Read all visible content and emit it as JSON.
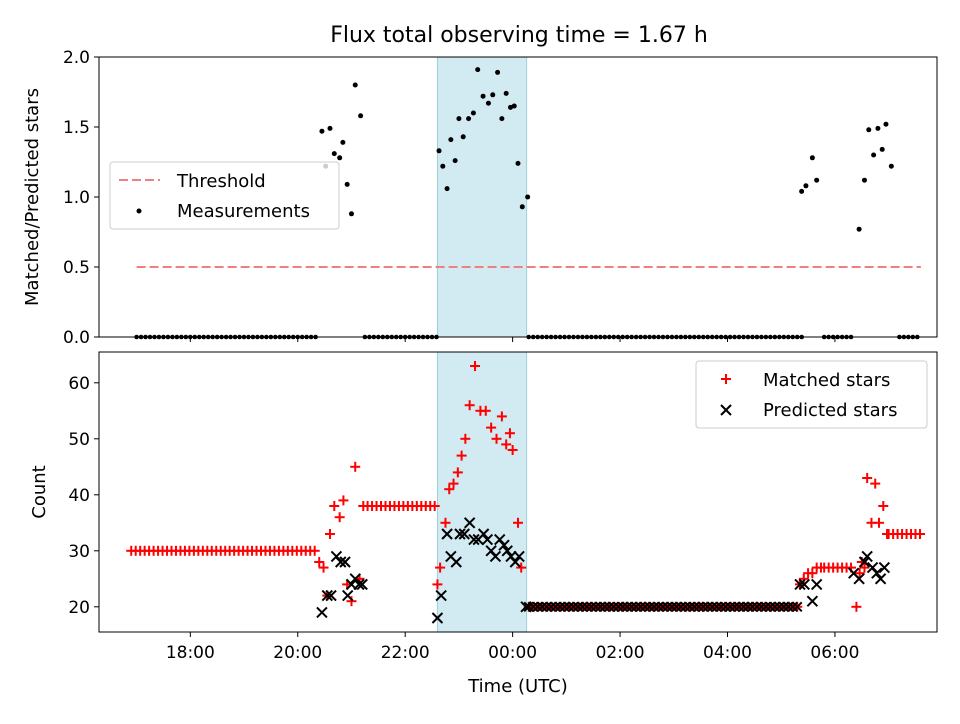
{
  "title": "Flux total observing time = 1.67 h",
  "xlabel": "Time (UTC)",
  "x_ticks": [
    {
      "t": 18,
      "label": "18:00"
    },
    {
      "t": 20,
      "label": "20:00"
    },
    {
      "t": 22,
      "label": "22:00"
    },
    {
      "t": 24,
      "label": "00:00"
    },
    {
      "t": 26,
      "label": "02:00"
    },
    {
      "t": 28,
      "label": "04:00"
    },
    {
      "t": 30,
      "label": "06:00"
    }
  ],
  "x_range_hours": [
    16.3,
    31.9
  ],
  "highlight_window_hours": [
    22.6,
    24.26
  ],
  "colors": {
    "threshold": "#f08080",
    "matched": "#ff0000",
    "predicted": "#000000",
    "highlight": "#add8e6"
  },
  "chart_data": [
    {
      "type": "scatter",
      "ylabel": "Matched/Predicted stars",
      "ylim": [
        0,
        2
      ],
      "yticks": [
        "0.0",
        "0.5",
        "1.0",
        "1.5",
        "2.0"
      ],
      "legend": {
        "placement": "center-left",
        "threshold_label": "Threshold",
        "measurements_label": "Measurements"
      },
      "threshold": {
        "value": 0.5,
        "x_range_hours": [
          17.0,
          31.6
        ]
      },
      "zero_measurement_spans_hours": [
        [
          17.0,
          20.4
        ],
        [
          21.25,
          22.6
        ],
        [
          24.3,
          29.4
        ],
        [
          29.8,
          30.3
        ],
        [
          31.2,
          31.6
        ]
      ],
      "measurements": [
        [
          20.45,
          1.47
        ],
        [
          20.52,
          1.22
        ],
        [
          20.6,
          1.49
        ],
        [
          20.68,
          1.31
        ],
        [
          20.78,
          1.28
        ],
        [
          20.84,
          1.39
        ],
        [
          20.92,
          1.09
        ],
        [
          21.0,
          0.88
        ],
        [
          21.07,
          1.8
        ],
        [
          21.17,
          1.58
        ],
        [
          22.63,
          1.33
        ],
        [
          22.7,
          1.22
        ],
        [
          22.78,
          1.06
        ],
        [
          22.85,
          1.41
        ],
        [
          22.93,
          1.26
        ],
        [
          23.0,
          1.56
        ],
        [
          23.08,
          1.43
        ],
        [
          23.18,
          1.56
        ],
        [
          23.27,
          1.6
        ],
        [
          23.35,
          1.91
        ],
        [
          23.45,
          1.72
        ],
        [
          23.55,
          1.67
        ],
        [
          23.63,
          1.73
        ],
        [
          23.72,
          1.89
        ],
        [
          23.8,
          1.56
        ],
        [
          23.88,
          1.74
        ],
        [
          23.96,
          1.64
        ],
        [
          24.03,
          1.65
        ],
        [
          24.1,
          1.24
        ],
        [
          24.18,
          0.93
        ],
        [
          24.28,
          1.0
        ],
        [
          29.38,
          1.04
        ],
        [
          29.46,
          1.08
        ],
        [
          29.58,
          1.28
        ],
        [
          29.66,
          1.12
        ],
        [
          30.45,
          0.77
        ],
        [
          30.55,
          1.12
        ],
        [
          30.63,
          1.48
        ],
        [
          30.72,
          1.3
        ],
        [
          30.8,
          1.49
        ],
        [
          30.88,
          1.34
        ],
        [
          30.95,
          1.52
        ],
        [
          31.05,
          1.22
        ]
      ]
    },
    {
      "type": "scatter",
      "ylabel": "Count",
      "ylim": [
        15.5,
        65.5
      ],
      "yticks": [
        "20",
        "30",
        "40",
        "50",
        "60"
      ],
      "legend": {
        "placement": "upper-right",
        "matched_label": "Matched stars",
        "predicted_label": "Predicted stars"
      },
      "matched_segments": [
        {
          "start": 16.9,
          "end": 20.35,
          "value": 30
        },
        {
          "start": 21.3,
          "end": 22.55,
          "value": 38
        },
        {
          "start": 24.3,
          "end": 29.35,
          "value": 20
        },
        {
          "start": 29.8,
          "end": 30.35,
          "value": 27
        },
        {
          "start": 31.0,
          "end": 31.65,
          "value": 33
        }
      ],
      "matched_points": [
        [
          20.4,
          28
        ],
        [
          20.48,
          27
        ],
        [
          20.55,
          22
        ],
        [
          20.6,
          33
        ],
        [
          20.68,
          38
        ],
        [
          20.78,
          36
        ],
        [
          20.85,
          39
        ],
        [
          20.92,
          24
        ],
        [
          21.0,
          21
        ],
        [
          21.07,
          45
        ],
        [
          21.15,
          25
        ],
        [
          21.22,
          38
        ],
        [
          22.6,
          24
        ],
        [
          22.65,
          27
        ],
        [
          22.75,
          35
        ],
        [
          22.82,
          41
        ],
        [
          22.9,
          42
        ],
        [
          22.98,
          44
        ],
        [
          23.05,
          47
        ],
        [
          23.12,
          50
        ],
        [
          23.2,
          56
        ],
        [
          23.3,
          63
        ],
        [
          23.4,
          55
        ],
        [
          23.5,
          55
        ],
        [
          23.6,
          52
        ],
        [
          23.7,
          50
        ],
        [
          23.8,
          54
        ],
        [
          23.88,
          49
        ],
        [
          23.95,
          51
        ],
        [
          24.0,
          48
        ],
        [
          24.1,
          35
        ],
        [
          24.16,
          27
        ],
        [
          29.35,
          24
        ],
        [
          29.42,
          25
        ],
        [
          29.5,
          26
        ],
        [
          29.58,
          26
        ],
        [
          29.66,
          27
        ],
        [
          29.74,
          27
        ],
        [
          30.4,
          20
        ],
        [
          30.46,
          26
        ],
        [
          30.5,
          28
        ],
        [
          30.55,
          27
        ],
        [
          30.6,
          43
        ],
        [
          30.68,
          35
        ],
        [
          30.75,
          42
        ],
        [
          30.82,
          35
        ],
        [
          30.9,
          38
        ],
        [
          30.97,
          33
        ]
      ],
      "predicted_points": [
        [
          20.45,
          19
        ],
        [
          20.55,
          22
        ],
        [
          20.62,
          22
        ],
        [
          20.72,
          29
        ],
        [
          20.8,
          28
        ],
        [
          20.88,
          28
        ],
        [
          20.93,
          22
        ],
        [
          21.0,
          24
        ],
        [
          21.07,
          25
        ],
        [
          21.14,
          24
        ],
        [
          21.2,
          24
        ],
        [
          22.6,
          18
        ],
        [
          22.67,
          22
        ],
        [
          22.78,
          33
        ],
        [
          22.85,
          29
        ],
        [
          22.95,
          28
        ],
        [
          23.02,
          33
        ],
        [
          23.1,
          33
        ],
        [
          23.2,
          35
        ],
        [
          23.28,
          32
        ],
        [
          23.36,
          32
        ],
        [
          23.46,
          33
        ],
        [
          23.53,
          32
        ],
        [
          23.6,
          30
        ],
        [
          23.68,
          29
        ],
        [
          23.76,
          32
        ],
        [
          23.84,
          31
        ],
        [
          23.9,
          30
        ],
        [
          23.97,
          29
        ],
        [
          24.05,
          28
        ],
        [
          24.12,
          29
        ],
        [
          24.25,
          20
        ],
        [
          29.35,
          24
        ],
        [
          29.43,
          24
        ],
        [
          29.58,
          21
        ],
        [
          29.66,
          24
        ],
        [
          30.35,
          26
        ],
        [
          30.45,
          25
        ],
        [
          30.55,
          28
        ],
        [
          30.6,
          29
        ],
        [
          30.7,
          27
        ],
        [
          30.78,
          26
        ],
        [
          30.85,
          25
        ],
        [
          30.92,
          27
        ]
      ]
    }
  ]
}
